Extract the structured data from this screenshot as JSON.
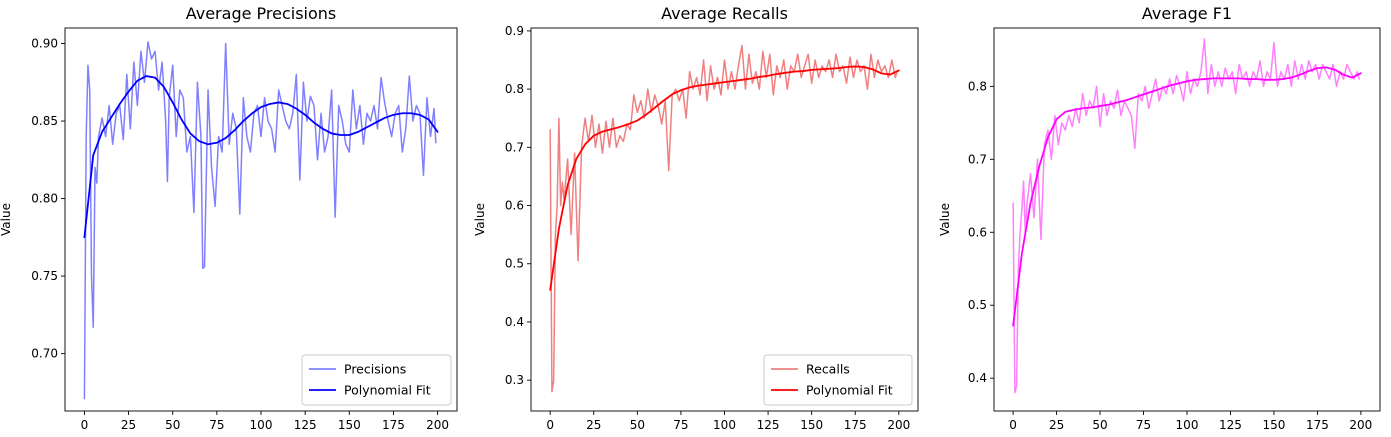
{
  "chart_data": [
    {
      "type": "line",
      "title": "Average Precisions",
      "xlabel": "",
      "ylabel": "Value",
      "xlim": [
        -11,
        211
      ],
      "ylim": [
        0.663,
        0.91
      ],
      "xticks": [
        0,
        25,
        50,
        75,
        100,
        125,
        150,
        175,
        200
      ],
      "yticks": [
        0.7,
        0.75,
        0.8,
        0.85,
        0.9
      ],
      "ytick_labels": [
        "0.70",
        "0.75",
        "0.80",
        "0.85",
        "0.90"
      ],
      "legend_position": "lower-right",
      "grid": false,
      "series": [
        {
          "name": "Precisions",
          "color": "#8080ff",
          "style": "raw",
          "x": [
            0,
            1,
            2,
            3,
            4,
            5,
            6,
            7,
            8,
            10,
            12,
            14,
            16,
            18,
            20,
            22,
            24,
            26,
            28,
            30,
            32,
            34,
            36,
            38,
            40,
            42,
            44,
            46,
            47,
            48,
            50,
            52,
            54,
            56,
            58,
            60,
            62,
            64,
            66,
            67,
            68,
            70,
            72,
            74,
            76,
            78,
            80,
            82,
            84,
            86,
            88,
            90,
            92,
            94,
            96,
            98,
            100,
            102,
            104,
            106,
            108,
            110,
            112,
            114,
            116,
            118,
            120,
            122,
            124,
            126,
            128,
            130,
            132,
            134,
            136,
            138,
            140,
            142,
            144,
            146,
            148,
            150,
            152,
            154,
            156,
            158,
            160,
            162,
            164,
            166,
            168,
            170,
            172,
            174,
            176,
            178,
            180,
            182,
            184,
            186,
            188,
            190,
            192,
            194,
            196,
            198,
            199
          ],
          "y": [
            0.671,
            0.84,
            0.886,
            0.87,
            0.75,
            0.717,
            0.82,
            0.81,
            0.84,
            0.852,
            0.84,
            0.86,
            0.835,
            0.855,
            0.86,
            0.838,
            0.88,
            0.845,
            0.888,
            0.86,
            0.895,
            0.875,
            0.901,
            0.89,
            0.895,
            0.87,
            0.888,
            0.85,
            0.811,
            0.865,
            0.886,
            0.84,
            0.87,
            0.865,
            0.83,
            0.84,
            0.791,
            0.875,
            0.84,
            0.755,
            0.756,
            0.87,
            0.82,
            0.795,
            0.84,
            0.83,
            0.9,
            0.835,
            0.855,
            0.845,
            0.79,
            0.865,
            0.84,
            0.83,
            0.855,
            0.86,
            0.84,
            0.865,
            0.85,
            0.845,
            0.83,
            0.87,
            0.86,
            0.85,
            0.845,
            0.855,
            0.88,
            0.812,
            0.875,
            0.85,
            0.866,
            0.86,
            0.825,
            0.855,
            0.83,
            0.84,
            0.87,
            0.788,
            0.86,
            0.85,
            0.835,
            0.83,
            0.87,
            0.845,
            0.86,
            0.835,
            0.855,
            0.85,
            0.86,
            0.845,
            0.878,
            0.862,
            0.85,
            0.84,
            0.855,
            0.86,
            0.83,
            0.845,
            0.879,
            0.85,
            0.86,
            0.855,
            0.815,
            0.865,
            0.84,
            0.858,
            0.836
          ]
        },
        {
          "name": "Polynomial Fit",
          "color": "#0000ff",
          "style": "fit",
          "x": [
            0,
            5,
            10,
            15,
            20,
            25,
            30,
            35,
            40,
            45,
            50,
            55,
            60,
            65,
            70,
            75,
            80,
            85,
            90,
            95,
            100,
            105,
            110,
            115,
            120,
            125,
            130,
            135,
            140,
            145,
            150,
            155,
            160,
            165,
            170,
            175,
            180,
            185,
            190,
            195,
            200
          ],
          "y": [
            0.775,
            0.828,
            0.843,
            0.852,
            0.861,
            0.869,
            0.876,
            0.879,
            0.878,
            0.872,
            0.862,
            0.851,
            0.842,
            0.837,
            0.835,
            0.836,
            0.839,
            0.844,
            0.85,
            0.855,
            0.859,
            0.861,
            0.862,
            0.861,
            0.858,
            0.854,
            0.849,
            0.845,
            0.842,
            0.841,
            0.841,
            0.843,
            0.846,
            0.849,
            0.852,
            0.854,
            0.855,
            0.855,
            0.854,
            0.851,
            0.843
          ]
        }
      ]
    },
    {
      "type": "line",
      "title": "Average Recalls",
      "xlabel": "",
      "ylabel": "Value",
      "xlim": [
        -11,
        211
      ],
      "ylim": [
        0.247,
        0.905
      ],
      "xticks": [
        0,
        25,
        50,
        75,
        100,
        125,
        150,
        175,
        200
      ],
      "yticks": [
        0.3,
        0.4,
        0.5,
        0.6,
        0.7,
        0.8,
        0.9
      ],
      "ytick_labels": [
        "0.3",
        "0.4",
        "0.5",
        "0.6",
        "0.7",
        "0.8",
        "0.9"
      ],
      "legend_position": "lower-right",
      "grid": false,
      "series": [
        {
          "name": "Recalls",
          "color": "#f08080",
          "style": "raw",
          "x": [
            0,
            1,
            2,
            3,
            4,
            5,
            6,
            7,
            8,
            10,
            12,
            14,
            16,
            18,
            20,
            22,
            24,
            26,
            28,
            30,
            32,
            34,
            36,
            38,
            40,
            42,
            44,
            46,
            48,
            50,
            52,
            54,
            56,
            58,
            60,
            62,
            64,
            66,
            68,
            70,
            72,
            74,
            76,
            78,
            80,
            82,
            84,
            86,
            88,
            90,
            92,
            94,
            96,
            98,
            100,
            102,
            104,
            106,
            108,
            110,
            112,
            114,
            116,
            118,
            120,
            122,
            124,
            126,
            128,
            130,
            132,
            134,
            136,
            138,
            140,
            142,
            144,
            146,
            148,
            150,
            152,
            154,
            156,
            158,
            160,
            162,
            164,
            166,
            168,
            170,
            172,
            174,
            176,
            178,
            180,
            182,
            184,
            186,
            188,
            190,
            192,
            194,
            196,
            198,
            199
          ],
          "y": [
            0.73,
            0.28,
            0.3,
            0.55,
            0.6,
            0.75,
            0.6,
            0.64,
            0.61,
            0.68,
            0.55,
            0.69,
            0.505,
            0.7,
            0.75,
            0.71,
            0.755,
            0.7,
            0.74,
            0.69,
            0.745,
            0.7,
            0.75,
            0.7,
            0.72,
            0.71,
            0.74,
            0.73,
            0.79,
            0.76,
            0.78,
            0.75,
            0.8,
            0.76,
            0.79,
            0.77,
            0.74,
            0.78,
            0.66,
            0.79,
            0.8,
            0.78,
            0.8,
            0.75,
            0.83,
            0.8,
            0.82,
            0.79,
            0.85,
            0.78,
            0.84,
            0.8,
            0.82,
            0.79,
            0.85,
            0.8,
            0.83,
            0.8,
            0.84,
            0.875,
            0.8,
            0.86,
            0.81,
            0.83,
            0.8,
            0.865,
            0.82,
            0.86,
            0.79,
            0.84,
            0.82,
            0.85,
            0.8,
            0.84,
            0.83,
            0.86,
            0.82,
            0.84,
            0.86,
            0.81,
            0.85,
            0.82,
            0.84,
            0.83,
            0.85,
            0.82,
            0.86,
            0.83,
            0.84,
            0.81,
            0.855,
            0.82,
            0.85,
            0.83,
            0.84,
            0.8,
            0.86,
            0.82,
            0.85,
            0.83,
            0.84,
            0.82,
            0.85,
            0.82,
            0.83
          ]
        },
        {
          "name": "Polynomial Fit",
          "color": "#ff0000",
          "style": "fit",
          "x": [
            0,
            5,
            10,
            15,
            20,
            25,
            30,
            35,
            40,
            45,
            50,
            55,
            60,
            65,
            70,
            75,
            80,
            85,
            90,
            95,
            100,
            105,
            110,
            115,
            120,
            125,
            130,
            135,
            140,
            145,
            150,
            155,
            160,
            165,
            170,
            175,
            180,
            185,
            190,
            195,
            200
          ],
          "y": [
            0.455,
            0.56,
            0.635,
            0.68,
            0.705,
            0.72,
            0.727,
            0.731,
            0.735,
            0.74,
            0.746,
            0.756,
            0.768,
            0.78,
            0.791,
            0.798,
            0.803,
            0.806,
            0.808,
            0.81,
            0.812,
            0.814,
            0.816,
            0.818,
            0.821,
            0.823,
            0.826,
            0.828,
            0.83,
            0.831,
            0.833,
            0.834,
            0.835,
            0.836,
            0.838,
            0.839,
            0.838,
            0.834,
            0.827,
            0.825,
            0.832
          ]
        }
      ]
    },
    {
      "type": "line",
      "title": "Average F1",
      "xlabel": "",
      "ylabel": "Value",
      "xlim": [
        -11,
        211
      ],
      "ylim": [
        0.355,
        0.88
      ],
      "xticks": [
        0,
        25,
        50,
        75,
        100,
        125,
        150,
        175,
        200
      ],
      "yticks": [
        0.4,
        0.5,
        0.6,
        0.7,
        0.8
      ],
      "ytick_labels": [
        "0.4",
        "0.5",
        "0.6",
        "0.7",
        "0.8"
      ],
      "legend_position": "none",
      "grid": false,
      "series": [
        {
          "color": "#ff80ff",
          "style": "raw",
          "x": [
            0,
            1,
            2,
            3,
            4,
            5,
            6,
            7,
            8,
            10,
            12,
            14,
            16,
            18,
            20,
            22,
            24,
            26,
            28,
            30,
            32,
            34,
            36,
            38,
            40,
            42,
            44,
            46,
            48,
            50,
            52,
            54,
            56,
            58,
            60,
            62,
            64,
            66,
            68,
            70,
            72,
            74,
            76,
            78,
            80,
            82,
            84,
            86,
            88,
            90,
            92,
            94,
            96,
            98,
            100,
            102,
            104,
            106,
            108,
            110,
            112,
            114,
            116,
            118,
            120,
            122,
            124,
            126,
            128,
            130,
            132,
            134,
            136,
            138,
            140,
            142,
            144,
            146,
            148,
            150,
            152,
            154,
            156,
            158,
            160,
            162,
            164,
            166,
            168,
            170,
            172,
            174,
            176,
            178,
            180,
            182,
            184,
            186,
            188,
            190,
            192,
            194,
            196,
            198,
            199
          ],
          "y": [
            0.64,
            0.38,
            0.39,
            0.55,
            0.6,
            0.63,
            0.67,
            0.6,
            0.64,
            0.68,
            0.62,
            0.7,
            0.59,
            0.72,
            0.74,
            0.7,
            0.76,
            0.72,
            0.75,
            0.74,
            0.76,
            0.745,
            0.77,
            0.75,
            0.79,
            0.76,
            0.78,
            0.77,
            0.8,
            0.745,
            0.79,
            0.76,
            0.78,
            0.77,
            0.795,
            0.76,
            0.78,
            0.77,
            0.76,
            0.715,
            0.79,
            0.78,
            0.8,
            0.77,
            0.79,
            0.81,
            0.78,
            0.8,
            0.79,
            0.81,
            0.79,
            0.815,
            0.8,
            0.78,
            0.82,
            0.79,
            0.81,
            0.8,
            0.82,
            0.865,
            0.79,
            0.83,
            0.8,
            0.82,
            0.8,
            0.825,
            0.81,
            0.82,
            0.79,
            0.83,
            0.81,
            0.82,
            0.8,
            0.82,
            0.81,
            0.835,
            0.8,
            0.82,
            0.81,
            0.86,
            0.8,
            0.82,
            0.81,
            0.83,
            0.8,
            0.835,
            0.81,
            0.83,
            0.81,
            0.835,
            0.82,
            0.83,
            0.81,
            0.83,
            0.82,
            0.81,
            0.83,
            0.8,
            0.82,
            0.81,
            0.83,
            0.82,
            0.81,
            0.82,
            0.81
          ]
        },
        {
          "color": "#ff00ff",
          "style": "fit",
          "x": [
            0,
            5,
            10,
            15,
            20,
            25,
            30,
            35,
            40,
            45,
            50,
            55,
            60,
            65,
            70,
            75,
            80,
            85,
            90,
            95,
            100,
            105,
            110,
            115,
            120,
            125,
            130,
            135,
            140,
            145,
            150,
            155,
            160,
            165,
            170,
            175,
            180,
            185,
            190,
            195,
            200
          ],
          "y": [
            0.472,
            0.57,
            0.64,
            0.69,
            0.73,
            0.755,
            0.765,
            0.768,
            0.77,
            0.771,
            0.773,
            0.775,
            0.778,
            0.781,
            0.785,
            0.789,
            0.793,
            0.797,
            0.801,
            0.804,
            0.807,
            0.809,
            0.81,
            0.811,
            0.811,
            0.811,
            0.811,
            0.81,
            0.81,
            0.809,
            0.809,
            0.81,
            0.812,
            0.816,
            0.821,
            0.825,
            0.826,
            0.823,
            0.816,
            0.812,
            0.818
          ]
        }
      ]
    }
  ]
}
